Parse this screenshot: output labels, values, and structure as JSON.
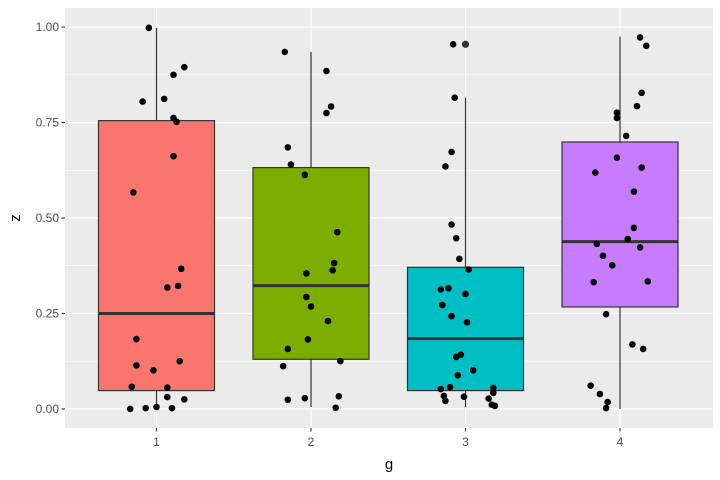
{
  "chart_data": {
    "type": "boxplot",
    "xlabel": "g",
    "ylabel": "z",
    "categories": [
      "1",
      "2",
      "3",
      "4"
    ],
    "ylim": [
      -0.05,
      1.05
    ],
    "yticks": [
      0.0,
      0.25,
      0.5,
      0.75,
      1.0
    ],
    "ytick_labels": [
      "0.00",
      "0.25",
      "0.50",
      "0.75",
      "1.00"
    ],
    "grid": true,
    "legend": "none",
    "colors": [
      "#F8766D",
      "#7CAE00",
      "#00BFC4",
      "#C77CFF"
    ],
    "boxes": [
      {
        "group": "1",
        "whisker_low": 0.0,
        "q1": 0.048,
        "median": 0.25,
        "q3": 0.755,
        "whisker_high": 0.998,
        "outliers": []
      },
      {
        "group": "2",
        "whisker_low": 0.005,
        "q1": 0.13,
        "median": 0.323,
        "q3": 0.632,
        "whisker_high": 0.935,
        "outliers": []
      },
      {
        "group": "3",
        "whisker_low": 0.005,
        "q1": 0.048,
        "median": 0.184,
        "q3": 0.371,
        "whisker_high": 0.815,
        "outliers": [
          0.955
        ]
      },
      {
        "group": "4",
        "whisker_low": 0.0,
        "q1": 0.267,
        "median": 0.438,
        "q3": 0.699,
        "whisker_high": 0.975,
        "outliers": []
      }
    ],
    "points": [
      {
        "x": 0.95,
        "y": 0.998
      },
      {
        "x": 1.11,
        "y": 0.875
      },
      {
        "x": 1.18,
        "y": 0.895
      },
      {
        "x": 0.91,
        "y": 0.805
      },
      {
        "x": 1.05,
        "y": 0.812
      },
      {
        "x": 1.11,
        "y": 0.762
      },
      {
        "x": 1.13,
        "y": 0.752
      },
      {
        "x": 1.11,
        "y": 0.662
      },
      {
        "x": 0.85,
        "y": 0.567
      },
      {
        "x": 1.16,
        "y": 0.367
      },
      {
        "x": 1.07,
        "y": 0.318
      },
      {
        "x": 1.14,
        "y": 0.322
      },
      {
        "x": 0.87,
        "y": 0.183
      },
      {
        "x": 1.15,
        "y": 0.125
      },
      {
        "x": 0.87,
        "y": 0.114
      },
      {
        "x": 0.98,
        "y": 0.101
      },
      {
        "x": 0.84,
        "y": 0.058
      },
      {
        "x": 1.07,
        "y": 0.056
      },
      {
        "x": 1.07,
        "y": 0.031
      },
      {
        "x": 1.18,
        "y": 0.025
      },
      {
        "x": 1.0,
        "y": 0.005
      },
      {
        "x": 0.93,
        "y": 0.002
      },
      {
        "x": 1.1,
        "y": 0.002
      },
      {
        "x": 0.83,
        "y": 0.0
      },
      {
        "x": 1.83,
        "y": 0.935
      },
      {
        "x": 2.1,
        "y": 0.885
      },
      {
        "x": 2.13,
        "y": 0.792
      },
      {
        "x": 2.1,
        "y": 0.775
      },
      {
        "x": 1.85,
        "y": 0.685
      },
      {
        "x": 1.87,
        "y": 0.64
      },
      {
        "x": 1.96,
        "y": 0.613
      },
      {
        "x": 2.17,
        "y": 0.463
      },
      {
        "x": 2.15,
        "y": 0.382
      },
      {
        "x": 2.14,
        "y": 0.363
      },
      {
        "x": 1.97,
        "y": 0.355
      },
      {
        "x": 1.97,
        "y": 0.293
      },
      {
        "x": 2.0,
        "y": 0.268
      },
      {
        "x": 2.11,
        "y": 0.23
      },
      {
        "x": 1.98,
        "y": 0.182
      },
      {
        "x": 1.85,
        "y": 0.157
      },
      {
        "x": 2.19,
        "y": 0.125
      },
      {
        "x": 1.82,
        "y": 0.112
      },
      {
        "x": 2.18,
        "y": 0.033
      },
      {
        "x": 1.96,
        "y": 0.028
      },
      {
        "x": 1.85,
        "y": 0.024
      },
      {
        "x": 2.16,
        "y": 0.003
      },
      {
        "x": 2.92,
        "y": 0.955
      },
      {
        "x": 2.93,
        "y": 0.815
      },
      {
        "x": 2.91,
        "y": 0.673
      },
      {
        "x": 2.87,
        "y": 0.635
      },
      {
        "x": 2.91,
        "y": 0.483
      },
      {
        "x": 2.94,
        "y": 0.447
      },
      {
        "x": 2.96,
        "y": 0.393
      },
      {
        "x": 3.02,
        "y": 0.365
      },
      {
        "x": 2.84,
        "y": 0.313
      },
      {
        "x": 2.89,
        "y": 0.316
      },
      {
        "x": 3.0,
        "y": 0.301
      },
      {
        "x": 2.85,
        "y": 0.272
      },
      {
        "x": 2.91,
        "y": 0.243
      },
      {
        "x": 3.01,
        "y": 0.227
      },
      {
        "x": 2.97,
        "y": 0.142
      },
      {
        "x": 2.94,
        "y": 0.136
      },
      {
        "x": 3.05,
        "y": 0.101
      },
      {
        "x": 2.95,
        "y": 0.088
      },
      {
        "x": 2.9,
        "y": 0.057
      },
      {
        "x": 2.84,
        "y": 0.052
      },
      {
        "x": 3.18,
        "y": 0.055
      },
      {
        "x": 3.18,
        "y": 0.042
      },
      {
        "x": 2.86,
        "y": 0.034
      },
      {
        "x": 2.99,
        "y": 0.032
      },
      {
        "x": 3.15,
        "y": 0.027
      },
      {
        "x": 2.87,
        "y": 0.021
      },
      {
        "x": 3.17,
        "y": 0.011
      },
      {
        "x": 3.19,
        "y": 0.008
      },
      {
        "x": 4.13,
        "y": 0.973
      },
      {
        "x": 4.17,
        "y": 0.951
      },
      {
        "x": 4.14,
        "y": 0.828
      },
      {
        "x": 4.11,
        "y": 0.793
      },
      {
        "x": 3.98,
        "y": 0.776
      },
      {
        "x": 3.98,
        "y": 0.762
      },
      {
        "x": 4.04,
        "y": 0.715
      },
      {
        "x": 3.98,
        "y": 0.658
      },
      {
        "x": 4.14,
        "y": 0.632
      },
      {
        "x": 3.84,
        "y": 0.619
      },
      {
        "x": 4.09,
        "y": 0.569
      },
      {
        "x": 4.09,
        "y": 0.474
      },
      {
        "x": 4.05,
        "y": 0.445
      },
      {
        "x": 3.85,
        "y": 0.432
      },
      {
        "x": 4.13,
        "y": 0.423
      },
      {
        "x": 3.89,
        "y": 0.401
      },
      {
        "x": 3.95,
        "y": 0.376
      },
      {
        "x": 3.83,
        "y": 0.332
      },
      {
        "x": 4.18,
        "y": 0.334
      },
      {
        "x": 3.91,
        "y": 0.248
      },
      {
        "x": 4.08,
        "y": 0.169
      },
      {
        "x": 4.15,
        "y": 0.157
      },
      {
        "x": 3.81,
        "y": 0.061
      },
      {
        "x": 3.87,
        "y": 0.039
      },
      {
        "x": 3.92,
        "y": 0.018
      },
      {
        "x": 3.91,
        "y": 0.002
      }
    ]
  }
}
